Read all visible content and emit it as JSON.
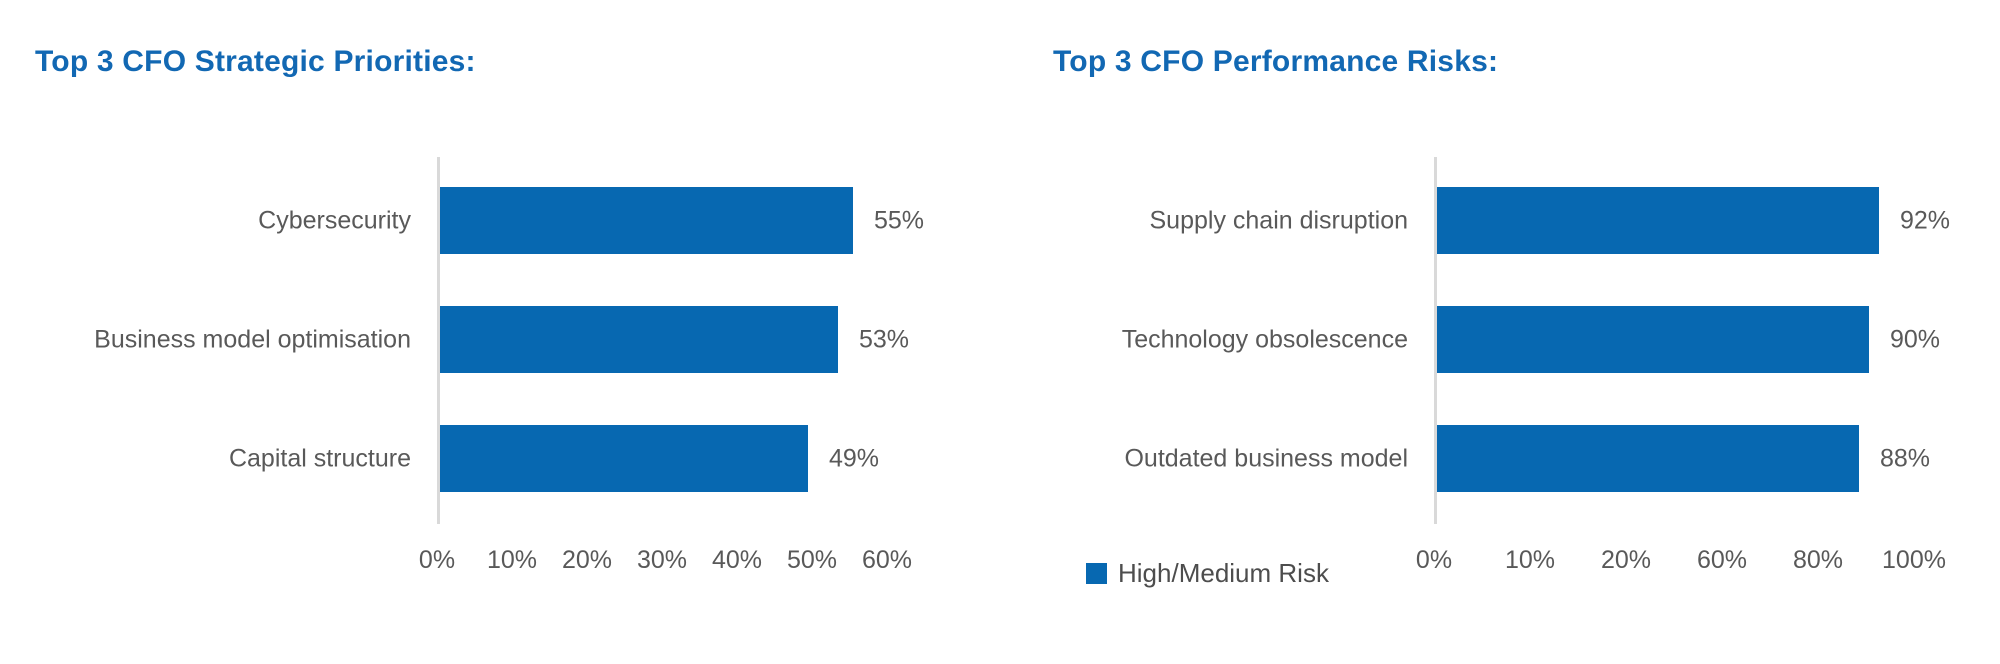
{
  "page": {
    "background": "#ffffff"
  },
  "colors": {
    "title_blue": "#1268b3",
    "bar_blue": "#0768b1",
    "axis_gray": "#d9d9d9",
    "text_gray": "#595959"
  },
  "chart_data": [
    {
      "type": "bar",
      "orientation": "horizontal",
      "title": "Top 3 CFO Strategic Priorities:",
      "categories": [
        "Cybersecurity",
        "Business model optimisation",
        "Capital structure"
      ],
      "values": [
        55,
        53,
        49
      ],
      "value_labels": [
        "55%",
        "53%",
        "49%"
      ],
      "tick_labels": [
        "0%",
        "10%",
        "20%",
        "30%",
        "40%",
        "50%",
        "60%"
      ],
      "xlim": [
        0,
        60
      ],
      "grid": false,
      "legend": null
    },
    {
      "type": "bar",
      "orientation": "horizontal",
      "title": "Top 3 CFO Performance Risks:",
      "categories": [
        "Supply chain disruption",
        "Technology obsolescence",
        "Outdated business model"
      ],
      "values": [
        92,
        90,
        88
      ],
      "value_labels": [
        "92%",
        "90%",
        "88%"
      ],
      "tick_labels": [
        "0%",
        "10%",
        "20%",
        "60%",
        "80%",
        "100%"
      ],
      "xlim": [
        0,
        100
      ],
      "grid": false,
      "legend": {
        "label": "High/Medium Risk",
        "swatch_color": "#0768b1"
      }
    }
  ]
}
